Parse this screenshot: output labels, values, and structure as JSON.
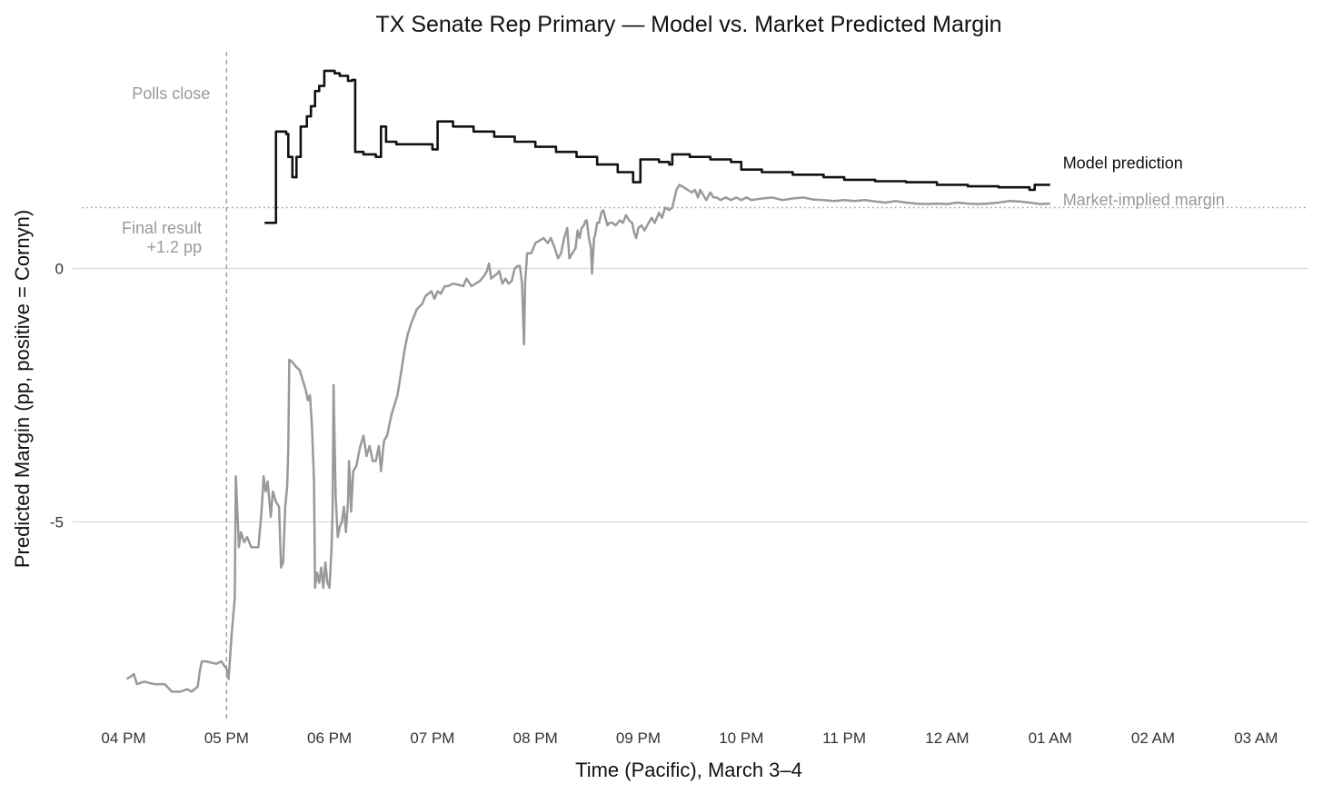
{
  "chart_data": {
    "type": "line",
    "title": "TX Senate Rep Primary — Model vs. Market Predicted Margin",
    "xlabel": "Time (Pacific), March 3–4",
    "ylabel": "Predicted Margin (pp, positive = Cornyn)",
    "x_unit": "hours since 4 PM",
    "xlim": [
      0,
      11.25
    ],
    "ylim": [
      -8.9,
      4.5
    ],
    "x_ticks": [
      {
        "value": 0,
        "label": "04 PM"
      },
      {
        "value": 1,
        "label": "05 PM"
      },
      {
        "value": 2,
        "label": "06 PM"
      },
      {
        "value": 3,
        "label": "07 PM"
      },
      {
        "value": 4,
        "label": "08 PM"
      },
      {
        "value": 5,
        "label": "09 PM"
      },
      {
        "value": 6,
        "label": "10 PM"
      },
      {
        "value": 7,
        "label": "11 PM"
      },
      {
        "value": 8,
        "label": "12 AM"
      },
      {
        "value": 9,
        "label": "01 AM"
      },
      {
        "value": 10,
        "label": "02 AM"
      },
      {
        "value": 11,
        "label": "03 AM"
      }
    ],
    "y_ticks": [
      {
        "value": 0,
        "label": "0"
      },
      {
        "value": -5,
        "label": "-5"
      }
    ],
    "colors": {
      "model": "#111111",
      "market": "#999999",
      "reference": "#999999"
    },
    "reference_lines": {
      "polls_close": {
        "x": 1,
        "label": "Polls close",
        "style": "dashed"
      },
      "final_result": {
        "y": 1.2,
        "label_line1": "Final result",
        "label_line2": "+1.2 pp",
        "style": "dotted"
      }
    },
    "series": [
      {
        "name": "Model prediction",
        "label": "Model prediction",
        "color": "#111111",
        "step": true,
        "points": [
          [
            1.37,
            0.9
          ],
          [
            1.47,
            0.9
          ],
          [
            1.48,
            2.7
          ],
          [
            1.58,
            2.65
          ],
          [
            1.6,
            2.2
          ],
          [
            1.64,
            1.8
          ],
          [
            1.68,
            2.2
          ],
          [
            1.72,
            2.8
          ],
          [
            1.78,
            3.0
          ],
          [
            1.82,
            3.2
          ],
          [
            1.86,
            3.5
          ],
          [
            1.9,
            3.6
          ],
          [
            1.95,
            3.9
          ],
          [
            2.05,
            3.85
          ],
          [
            2.1,
            3.8
          ],
          [
            2.18,
            3.7
          ],
          [
            2.22,
            3.72
          ],
          [
            2.25,
            2.3
          ],
          [
            2.33,
            2.25
          ],
          [
            2.45,
            2.2
          ],
          [
            2.5,
            2.8
          ],
          [
            2.55,
            2.5
          ],
          [
            2.65,
            2.45
          ],
          [
            2.75,
            2.45
          ],
          [
            2.9,
            2.45
          ],
          [
            3.0,
            2.35
          ],
          [
            3.05,
            2.9
          ],
          [
            3.2,
            2.8
          ],
          [
            3.4,
            2.7
          ],
          [
            3.6,
            2.6
          ],
          [
            3.8,
            2.5
          ],
          [
            4.0,
            2.4
          ],
          [
            4.2,
            2.3
          ],
          [
            4.4,
            2.2
          ],
          [
            4.6,
            2.05
          ],
          [
            4.8,
            1.9
          ],
          [
            4.85,
            1.9
          ],
          [
            4.95,
            1.7
          ],
          [
            5.0,
            1.7
          ],
          [
            5.02,
            2.15
          ],
          [
            5.2,
            2.1
          ],
          [
            5.3,
            2.05
          ],
          [
            5.33,
            2.25
          ],
          [
            5.5,
            2.2
          ],
          [
            5.7,
            2.15
          ],
          [
            5.9,
            2.1
          ],
          [
            6.0,
            1.95
          ],
          [
            6.2,
            1.9
          ],
          [
            6.5,
            1.85
          ],
          [
            6.8,
            1.8
          ],
          [
            7.0,
            1.75
          ],
          [
            7.3,
            1.72
          ],
          [
            7.6,
            1.7
          ],
          [
            7.9,
            1.65
          ],
          [
            8.2,
            1.62
          ],
          [
            8.5,
            1.6
          ],
          [
            8.8,
            1.55
          ],
          [
            8.85,
            1.65
          ],
          [
            9.0,
            1.65
          ]
        ]
      },
      {
        "name": "Market-implied margin",
        "label": "Market-implied margin",
        "color": "#999999",
        "step": false,
        "points": [
          [
            0.03,
            -8.1
          ],
          [
            0.07,
            -8.05
          ],
          [
            0.1,
            -8.0
          ],
          [
            0.13,
            -8.2
          ],
          [
            0.2,
            -8.15
          ],
          [
            0.3,
            -8.2
          ],
          [
            0.4,
            -8.2
          ],
          [
            0.47,
            -8.35
          ],
          [
            0.55,
            -8.35
          ],
          [
            0.62,
            -8.3
          ],
          [
            0.66,
            -8.35
          ],
          [
            0.72,
            -8.25
          ],
          [
            0.74,
            -7.95
          ],
          [
            0.76,
            -7.75
          ],
          [
            0.8,
            -7.75
          ],
          [
            0.9,
            -7.8
          ],
          [
            0.95,
            -7.75
          ],
          [
            1.0,
            -7.9
          ],
          [
            1.02,
            -8.1
          ],
          [
            1.05,
            -7.2
          ],
          [
            1.08,
            -6.5
          ],
          [
            1.09,
            -4.1
          ],
          [
            1.11,
            -5.0
          ],
          [
            1.12,
            -5.5
          ],
          [
            1.14,
            -5.2
          ],
          [
            1.17,
            -5.4
          ],
          [
            1.2,
            -5.3
          ],
          [
            1.24,
            -5.5
          ],
          [
            1.28,
            -5.5
          ],
          [
            1.31,
            -5.5
          ],
          [
            1.34,
            -4.8
          ],
          [
            1.36,
            -4.1
          ],
          [
            1.38,
            -4.4
          ],
          [
            1.4,
            -4.2
          ],
          [
            1.43,
            -4.9
          ],
          [
            1.45,
            -4.4
          ],
          [
            1.48,
            -4.6
          ],
          [
            1.51,
            -4.7
          ],
          [
            1.53,
            -5.9
          ],
          [
            1.55,
            -5.8
          ],
          [
            1.57,
            -4.7
          ],
          [
            1.59,
            -4.3
          ],
          [
            1.6,
            -3.5
          ],
          [
            1.61,
            -1.8
          ],
          [
            1.64,
            -1.85
          ],
          [
            1.68,
            -1.95
          ],
          [
            1.71,
            -2.0
          ],
          [
            1.74,
            -2.2
          ],
          [
            1.77,
            -2.4
          ],
          [
            1.79,
            -2.6
          ],
          [
            1.81,
            -2.5
          ],
          [
            1.83,
            -3.1
          ],
          [
            1.85,
            -4.2
          ],
          [
            1.86,
            -6.3
          ],
          [
            1.88,
            -6.0
          ],
          [
            1.9,
            -6.2
          ],
          [
            1.92,
            -5.9
          ],
          [
            1.94,
            -6.3
          ],
          [
            1.96,
            -5.8
          ],
          [
            1.98,
            -6.2
          ],
          [
            2.0,
            -6.3
          ],
          [
            2.02,
            -5.5
          ],
          [
            2.03,
            -4.8
          ],
          [
            2.04,
            -2.3
          ],
          [
            2.06,
            -4.5
          ],
          [
            2.08,
            -5.3
          ],
          [
            2.1,
            -5.1
          ],
          [
            2.12,
            -5.0
          ],
          [
            2.14,
            -4.7
          ],
          [
            2.16,
            -5.2
          ],
          [
            2.18,
            -4.6
          ],
          [
            2.19,
            -3.8
          ],
          [
            2.2,
            -4.2
          ],
          [
            2.21,
            -4.8
          ],
          [
            2.23,
            -4.0
          ],
          [
            2.26,
            -3.9
          ],
          [
            2.28,
            -3.7
          ],
          [
            2.3,
            -3.5
          ],
          [
            2.33,
            -3.3
          ],
          [
            2.36,
            -3.7
          ],
          [
            2.39,
            -3.5
          ],
          [
            2.42,
            -3.8
          ],
          [
            2.45,
            -3.8
          ],
          [
            2.48,
            -3.5
          ],
          [
            2.5,
            -4.0
          ],
          [
            2.53,
            -3.4
          ],
          [
            2.56,
            -3.3
          ],
          [
            2.6,
            -2.9
          ],
          [
            2.63,
            -2.7
          ],
          [
            2.66,
            -2.5
          ],
          [
            2.7,
            -2.0
          ],
          [
            2.73,
            -1.6
          ],
          [
            2.76,
            -1.3
          ],
          [
            2.8,
            -1.05
          ],
          [
            2.85,
            -0.8
          ],
          [
            2.9,
            -0.7
          ],
          [
            2.93,
            -0.55
          ],
          [
            2.96,
            -0.5
          ],
          [
            2.99,
            -0.45
          ],
          [
            3.02,
            -0.6
          ],
          [
            3.05,
            -0.45
          ],
          [
            3.08,
            -0.5
          ],
          [
            3.12,
            -0.35
          ],
          [
            3.15,
            -0.35
          ],
          [
            3.2,
            -0.3
          ],
          [
            3.25,
            -0.32
          ],
          [
            3.3,
            -0.35
          ],
          [
            3.33,
            -0.2
          ],
          [
            3.38,
            -0.35
          ],
          [
            3.42,
            -0.3
          ],
          [
            3.46,
            -0.25
          ],
          [
            3.5,
            -0.15
          ],
          [
            3.53,
            -0.05
          ],
          [
            3.55,
            0.1
          ],
          [
            3.57,
            -0.2
          ],
          [
            3.6,
            -0.15
          ],
          [
            3.63,
            -0.1
          ],
          [
            3.65,
            -0.05
          ],
          [
            3.68,
            -0.3
          ],
          [
            3.71,
            -0.2
          ],
          [
            3.74,
            -0.3
          ],
          [
            3.77,
            -0.25
          ],
          [
            3.8,
            0.0
          ],
          [
            3.83,
            0.05
          ],
          [
            3.85,
            0.05
          ],
          [
            3.87,
            -0.3
          ],
          [
            3.89,
            -1.5
          ],
          [
            3.9,
            -0.3
          ],
          [
            3.92,
            0.3
          ],
          [
            3.96,
            0.3
          ],
          [
            4.0,
            0.5
          ],
          [
            4.04,
            0.55
          ],
          [
            4.08,
            0.6
          ],
          [
            4.12,
            0.5
          ],
          [
            4.15,
            0.6
          ],
          [
            4.18,
            0.45
          ],
          [
            4.22,
            0.2
          ],
          [
            4.25,
            0.3
          ],
          [
            4.28,
            0.6
          ],
          [
            4.31,
            0.8
          ],
          [
            4.33,
            0.2
          ],
          [
            4.36,
            0.3
          ],
          [
            4.39,
            0.4
          ],
          [
            4.41,
            0.75
          ],
          [
            4.43,
            0.6
          ],
          [
            4.45,
            0.8
          ],
          [
            4.47,
            0.85
          ],
          [
            4.49,
            0.95
          ],
          [
            4.5,
            0.95
          ],
          [
            4.52,
            0.6
          ],
          [
            4.54,
            0.4
          ],
          [
            4.55,
            -0.1
          ],
          [
            4.57,
            0.6
          ],
          [
            4.58,
            0.65
          ],
          [
            4.6,
            0.9
          ],
          [
            4.62,
            0.9
          ],
          [
            4.64,
            1.1
          ],
          [
            4.66,
            1.15
          ],
          [
            4.68,
            1.0
          ],
          [
            4.7,
            0.85
          ],
          [
            4.72,
            0.9
          ],
          [
            4.75,
            0.9
          ],
          [
            4.78,
            0.85
          ],
          [
            4.82,
            0.95
          ],
          [
            4.85,
            0.9
          ],
          [
            4.88,
            1.05
          ],
          [
            4.91,
            0.95
          ],
          [
            4.94,
            0.9
          ],
          [
            4.96,
            0.7
          ],
          [
            4.98,
            0.6
          ],
          [
            5.0,
            0.8
          ],
          [
            5.03,
            0.85
          ],
          [
            5.06,
            0.75
          ],
          [
            5.1,
            0.9
          ],
          [
            5.13,
            1.0
          ],
          [
            5.16,
            0.9
          ],
          [
            5.2,
            1.1
          ],
          [
            5.23,
            1.0
          ],
          [
            5.26,
            1.2
          ],
          [
            5.3,
            1.15
          ],
          [
            5.33,
            1.2
          ],
          [
            5.37,
            1.55
          ],
          [
            5.4,
            1.65
          ],
          [
            5.44,
            1.6
          ],
          [
            5.48,
            1.55
          ],
          [
            5.52,
            1.5
          ],
          [
            5.55,
            1.55
          ],
          [
            5.58,
            1.4
          ],
          [
            5.6,
            1.55
          ],
          [
            5.63,
            1.45
          ],
          [
            5.66,
            1.35
          ],
          [
            5.7,
            1.5
          ],
          [
            5.73,
            1.4
          ],
          [
            5.76,
            1.4
          ],
          [
            5.8,
            1.35
          ],
          [
            5.85,
            1.4
          ],
          [
            5.9,
            1.35
          ],
          [
            5.95,
            1.4
          ],
          [
            6.0,
            1.35
          ],
          [
            6.05,
            1.4
          ],
          [
            6.1,
            1.35
          ],
          [
            6.2,
            1.38
          ],
          [
            6.3,
            1.4
          ],
          [
            6.4,
            1.35
          ],
          [
            6.5,
            1.38
          ],
          [
            6.6,
            1.4
          ],
          [
            6.7,
            1.36
          ],
          [
            6.8,
            1.35
          ],
          [
            6.9,
            1.33
          ],
          [
            7.0,
            1.35
          ],
          [
            7.1,
            1.33
          ],
          [
            7.2,
            1.35
          ],
          [
            7.3,
            1.32
          ],
          [
            7.4,
            1.3
          ],
          [
            7.5,
            1.33
          ],
          [
            7.6,
            1.3
          ],
          [
            7.7,
            1.28
          ],
          [
            7.8,
            1.27
          ],
          [
            7.9,
            1.28
          ],
          [
            8.0,
            1.27
          ],
          [
            8.1,
            1.3
          ],
          [
            8.2,
            1.28
          ],
          [
            8.3,
            1.27
          ],
          [
            8.4,
            1.28
          ],
          [
            8.5,
            1.3
          ],
          [
            8.6,
            1.33
          ],
          [
            8.7,
            1.32
          ],
          [
            8.8,
            1.3
          ],
          [
            8.9,
            1.27
          ],
          [
            9.0,
            1.28
          ]
        ]
      }
    ]
  }
}
